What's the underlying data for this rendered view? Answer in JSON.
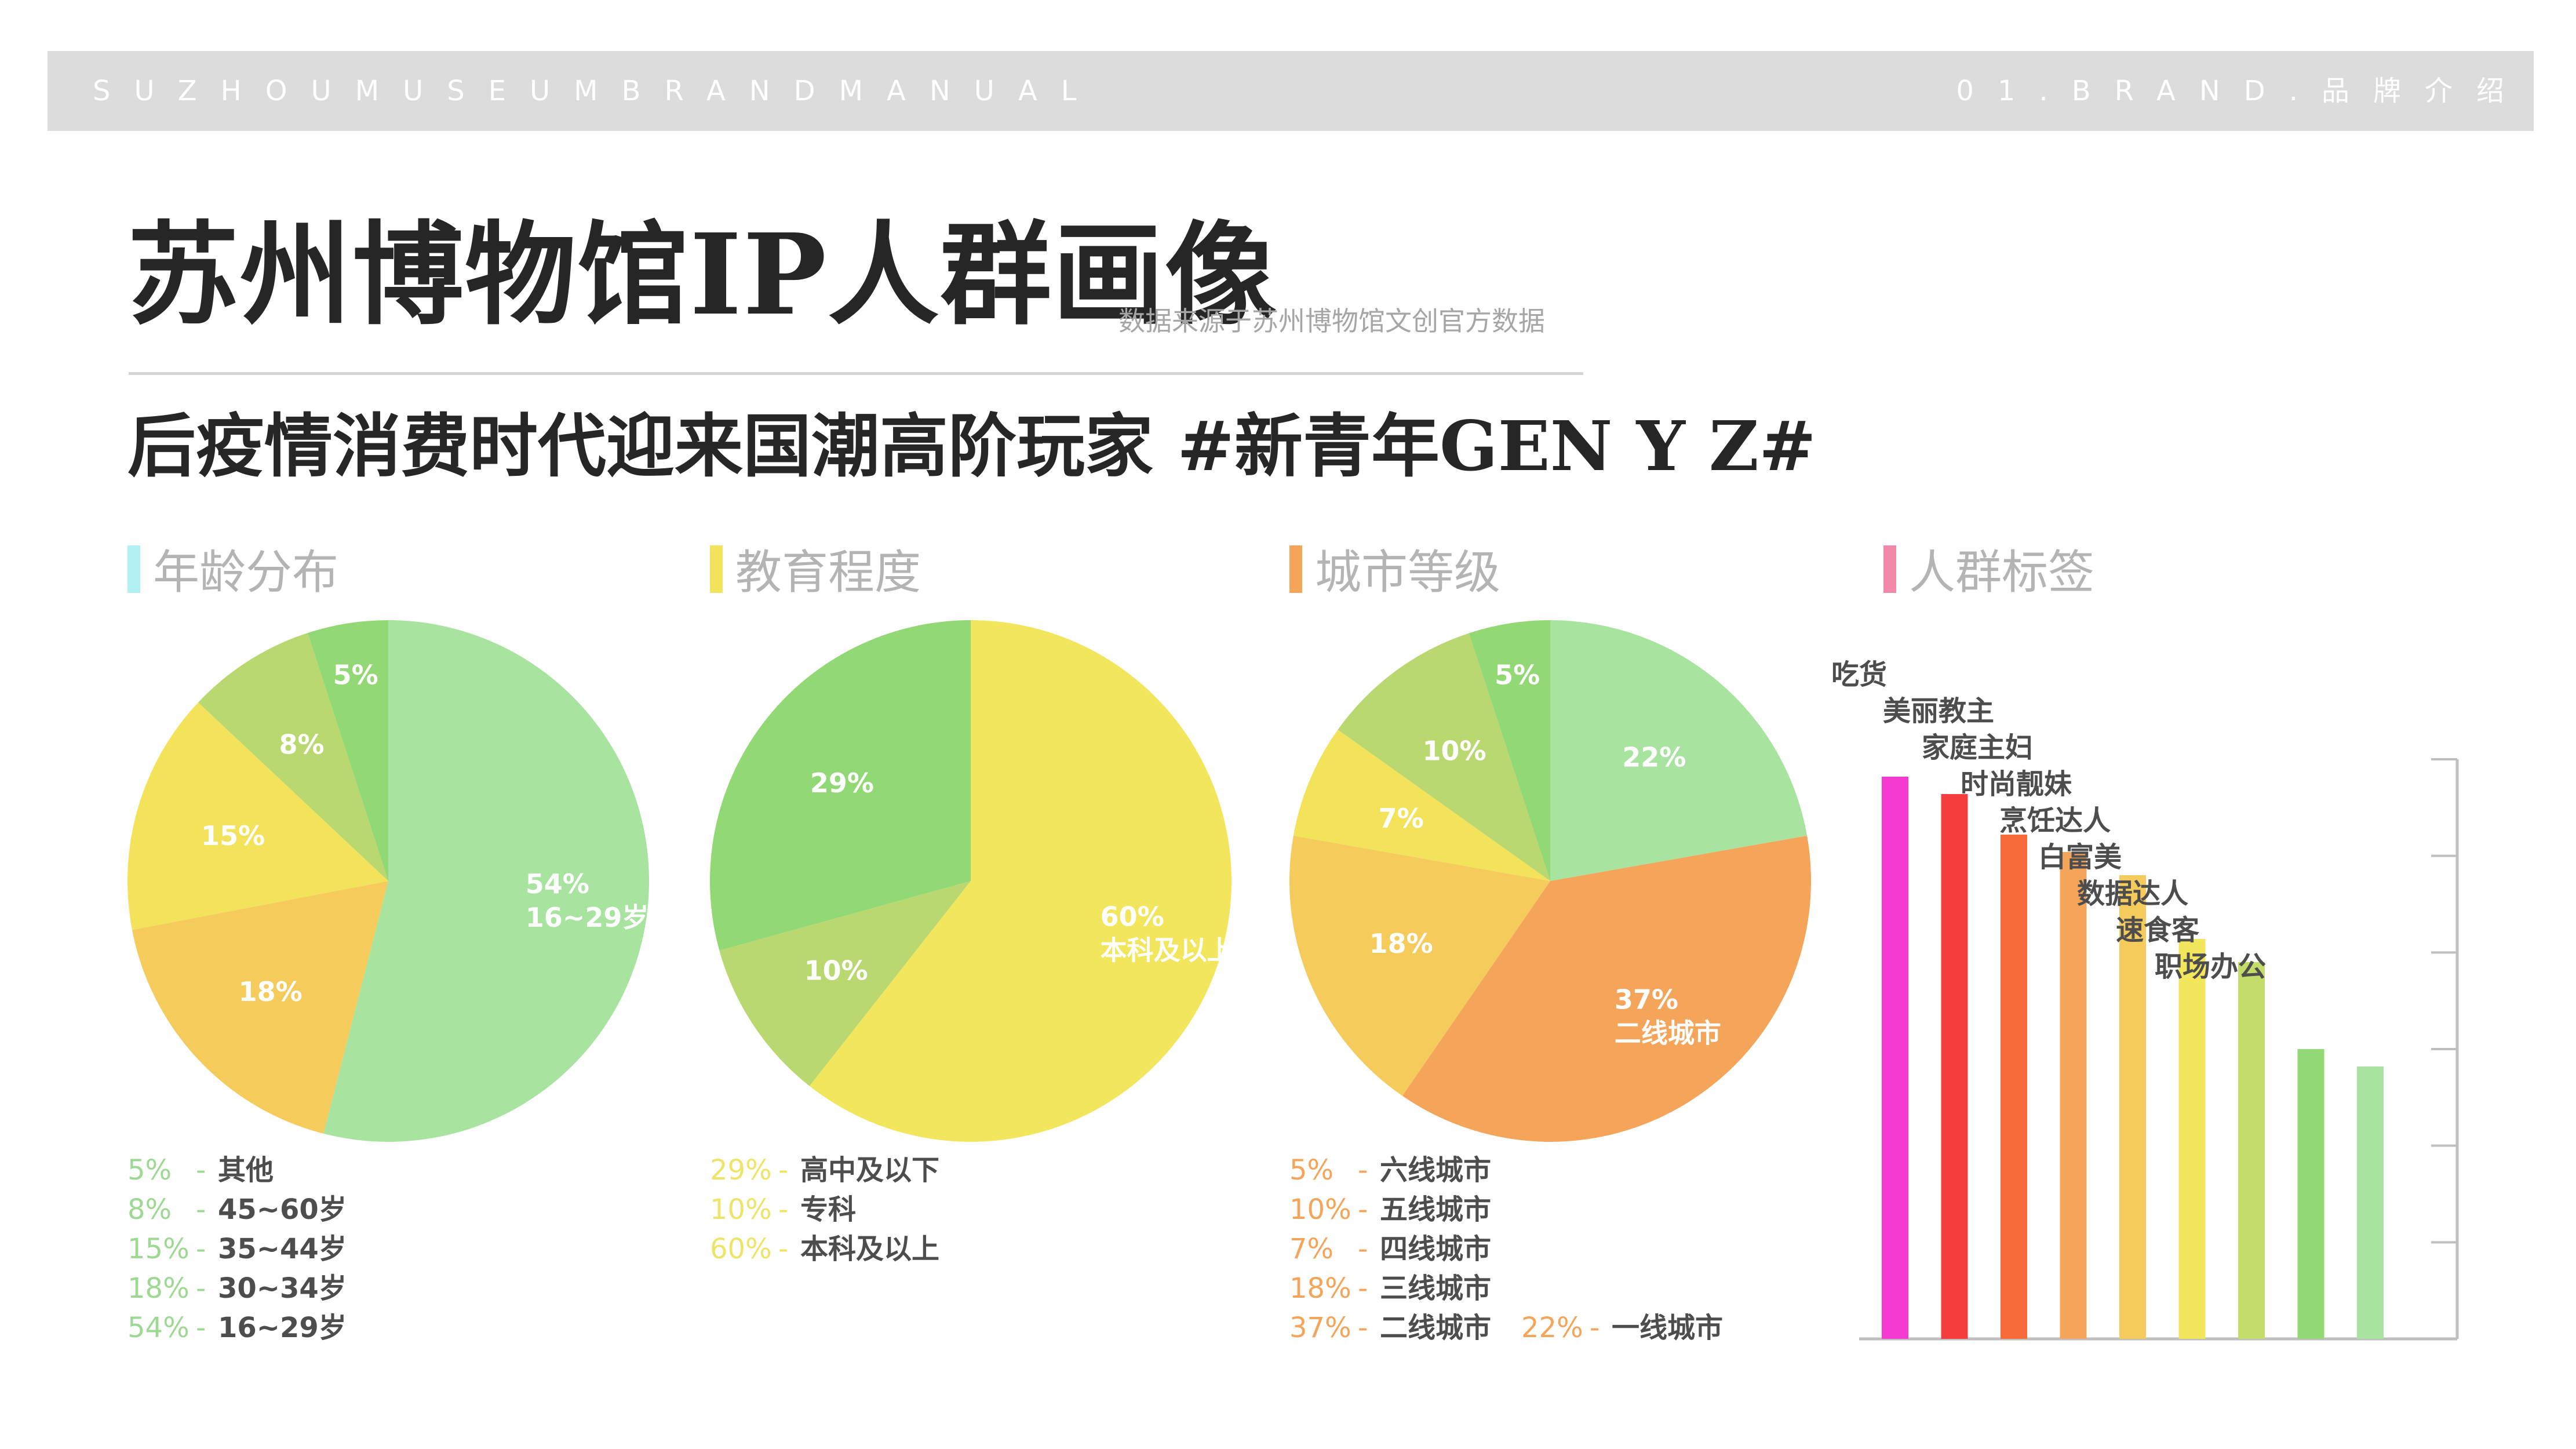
{
  "header": {
    "left_text": "SUZHOUMUSEUMBRANDMANUAL",
    "right_text": "01.BRAND.品牌介绍"
  },
  "title": "苏州博物馆IP人群画像",
  "source_note": "数据来源于苏州博物馆文创官方数据",
  "subtitle": "后疫情消费时代迎来国潮高阶玩家 #新青年GEN Y Z#",
  "colors": {
    "header_bg": "#dcdcdc",
    "age_accent": "#b3f0f4",
    "edu_accent": "#f2e35a",
    "city_accent": "#f5a55a",
    "tag_accent": "#f08aa8"
  },
  "chart_data": [
    {
      "type": "pie",
      "title": "年龄分布",
      "slices": [
        {
          "label": "16~29岁",
          "value": 54,
          "pct_label": "54%",
          "inner_label": "16~29岁",
          "color": "#a8e4a0"
        },
        {
          "label": "30~34岁",
          "value": 18,
          "pct_label": "18%",
          "color": "#f5cb5c"
        },
        {
          "label": "35~44岁",
          "value": 15,
          "pct_label": "15%",
          "color": "#f2e35a"
        },
        {
          "label": "45~60岁",
          "value": 8,
          "pct_label": "8%",
          "color": "#b9d870"
        },
        {
          "label": "其他",
          "value": 5,
          "pct_label": "5%",
          "color": "#92d875"
        }
      ],
      "legend": [
        {
          "pct": "5%",
          "label": "其他"
        },
        {
          "pct": "8%",
          "label": "45~60岁"
        },
        {
          "pct": "15%",
          "label": "35~44岁"
        },
        {
          "pct": "18%",
          "label": "30~34岁"
        },
        {
          "pct": "54%",
          "label": "16~29岁"
        }
      ],
      "legend_color": "#9ed993"
    },
    {
      "type": "pie",
      "title": "教育程度",
      "slices": [
        {
          "label": "本科及以上",
          "value": 60,
          "pct_label": "60%",
          "inner_label": "本科及以上",
          "color": "#f2e65c"
        },
        {
          "label": "专科",
          "value": 10,
          "pct_label": "10%",
          "color": "#b9d870"
        },
        {
          "label": "高中及以下",
          "value": 29,
          "pct_label": "29%",
          "color": "#92d875"
        }
      ],
      "legend": [
        {
          "pct": "29%",
          "label": "高中及以下"
        },
        {
          "pct": "10%",
          "label": "专科"
        },
        {
          "pct": "60%",
          "label": "本科及以上"
        }
      ],
      "legend_color": "#ece56a"
    },
    {
      "type": "pie",
      "title": "城市等级",
      "slices": [
        {
          "label": "一线城市",
          "value": 22,
          "pct_label": "22%",
          "color": "#a8e4a0"
        },
        {
          "label": "二线城市",
          "value": 37,
          "pct_label": "37%",
          "inner_label": "二线城市",
          "color": "#f5a55a"
        },
        {
          "label": "三线城市",
          "value": 18,
          "pct_label": "18%",
          "color": "#f5cb5c"
        },
        {
          "label": "四线城市",
          "value": 7,
          "pct_label": "7%",
          "color": "#f2e35a"
        },
        {
          "label": "五线城市",
          "value": 10,
          "pct_label": "10%",
          "color": "#b9d870"
        },
        {
          "label": "六线城市",
          "value": 5,
          "pct_label": "5%",
          "color": "#92d875"
        }
      ],
      "legend": [
        {
          "pct": "5%",
          "label": "六线城市"
        },
        {
          "pct": "10%",
          "label": "五线城市"
        },
        {
          "pct": "7%",
          "label": "四线城市"
        },
        {
          "pct": "18%",
          "label": "三线城市"
        },
        {
          "pct": "37%",
          "label": "二线城市"
        }
      ],
      "legend_extra": {
        "pct": "22%",
        "label": "一线城市"
      },
      "legend_color": "#f5a55a"
    },
    {
      "type": "bar",
      "title": "人群标签",
      "categories": [
        "吃货",
        "美丽教主",
        "家庭主妇",
        "时尚靓妹",
        "烹饪达人",
        "白富美",
        "数据达人",
        "速食客",
        "职场办公"
      ],
      "values": [
        97,
        94,
        87,
        84,
        80,
        69,
        65,
        50,
        47
      ],
      "colors": [
        "#f53ad2",
        "#f63d3d",
        "#f76a3a",
        "#f5a55a",
        "#f5cb5c",
        "#f2e65c",
        "#c4dc6a",
        "#92d875",
        "#a8e4a0"
      ],
      "ylim": [
        0,
        100
      ],
      "grid": false
    }
  ]
}
